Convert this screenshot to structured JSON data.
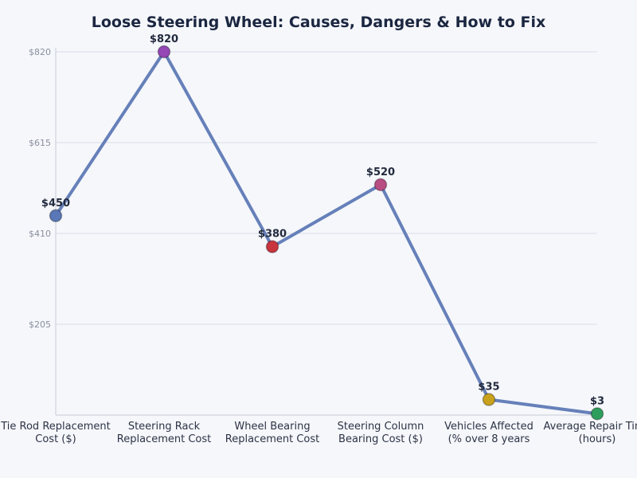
{
  "chart_data": {
    "type": "line",
    "title": "Loose Steering Wheel: Causes, Dangers & How to Fix",
    "categories": [
      [
        "Tie Rod Replacement",
        "Cost ($)"
      ],
      [
        "Steering Rack",
        "Replacement Cost"
      ],
      [
        "Wheel Bearing",
        "Replacement Cost"
      ],
      [
        "Steering Column",
        "Bearing Cost ($)"
      ],
      [
        "Vehicles Affected",
        "(% over 8 years"
      ],
      [
        "Average Repair Time",
        "(hours)"
      ]
    ],
    "values": [
      450,
      820,
      380,
      520,
      35,
      3
    ],
    "data_labels": [
      "$450",
      "$820",
      "$380",
      "$520",
      "$35",
      "$3"
    ],
    "yticks": [
      205,
      410,
      615,
      820
    ],
    "ytick_labels": [
      "$205",
      "$410",
      "$615",
      "$820"
    ],
    "ylim": [
      0,
      820
    ],
    "grid": true,
    "line_color": "#6680b9",
    "point_colors": [
      "#5a78b8",
      "#9447b5",
      "#c8353f",
      "#b84d82",
      "#c9a21d",
      "#2e9e5c"
    ]
  }
}
